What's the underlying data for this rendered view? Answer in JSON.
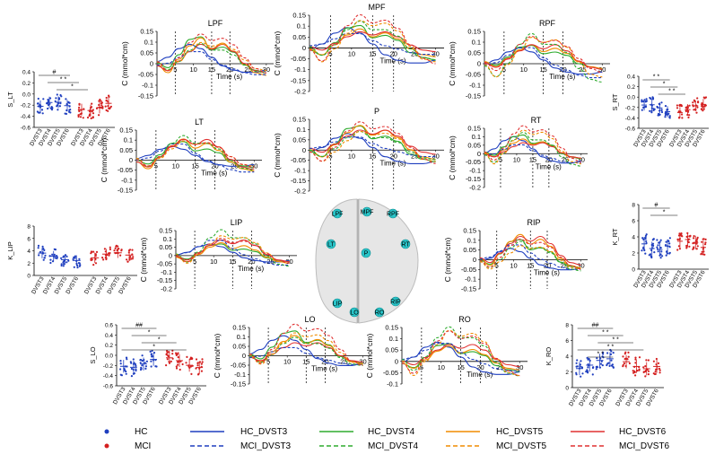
{
  "colors": {
    "hc": "#1f3fbf",
    "mci": "#d42020",
    "dvst3": "#1f3fbf",
    "dvst4": "#2eab2e",
    "dvst5": "#f08c00",
    "dvst6": "#e03030"
  },
  "chart_data": {
    "type": "line",
    "time_label": "Time (s)",
    "conc_label": "C (mmol*cm)",
    "time_ticks": [
      "5",
      "10",
      "15",
      "20",
      "25",
      "30"
    ],
    "brain_channels": [
      "LPF",
      "MPF",
      "RPF",
      "LT",
      "P",
      "RT",
      "LIP",
      "RIP",
      "LO",
      "RO"
    ],
    "line_charts": [
      {
        "title": "LPF",
        "yticks": [
          "0.15",
          "0.1",
          "0.05",
          "0",
          "-0.05",
          "-0.1",
          "-0.15"
        ]
      },
      {
        "title": "MPF",
        "yticks": [
          "0.15",
          "0.1",
          "0.05",
          "0",
          "-0.05",
          "-0.1",
          "-0.15",
          "-0.2"
        ]
      },
      {
        "title": "RPF",
        "yticks": [
          "0.15",
          "0.1",
          "0.05",
          "0",
          "-0.05",
          "-0.1",
          "-0.15"
        ]
      },
      {
        "title": "LT",
        "yticks": [
          "0.15",
          "0.1",
          "0.05",
          "0",
          "-0.05",
          "-0.1",
          "-0.15"
        ]
      },
      {
        "title": "P",
        "yticks": [
          "0.15",
          "0.1",
          "0.05",
          "0",
          "-0.05",
          "-0.1",
          "-0.15",
          "-0.2"
        ]
      },
      {
        "title": "RT",
        "yticks": [
          "0.15",
          "0.1",
          "0.05",
          "0",
          "-0.05",
          "-0.1",
          "-0.15",
          "-0.2"
        ]
      },
      {
        "title": "LIP",
        "yticks": [
          "0.15",
          "0.1",
          "0.05",
          "0",
          "-0.05",
          "-0.1",
          "-0.15",
          "-0.2"
        ]
      },
      {
        "title": "RIP",
        "yticks": [
          "0.15",
          "0.1",
          "0.05",
          "0",
          "-0.05",
          "-0.1",
          "-0.15"
        ]
      },
      {
        "title": "LO",
        "yticks": [
          "0.15",
          "0.1",
          "0.05",
          "0",
          "-0.05",
          "-0.1",
          "-0.15"
        ]
      },
      {
        "title": "RO",
        "yticks": [
          "0.15",
          "0.1",
          "0.05",
          "0",
          "-0.05",
          "-0.1"
        ]
      }
    ],
    "series": [
      {
        "name": "HC_DVST3",
        "values": [
          0,
          0.02,
          0.06,
          0.08,
          0.06,
          0.02,
          -0.02,
          -0.04,
          -0.05,
          -0.05,
          -0.04
        ]
      },
      {
        "name": "HC_DVST4",
        "values": [
          0,
          -0.02,
          0.03,
          0.09,
          0.1,
          0.05,
          0.06,
          0.04,
          -0.01,
          -0.03,
          -0.04
        ]
      },
      {
        "name": "HC_DVST5",
        "values": [
          0,
          -0.03,
          0.02,
          0.07,
          0.1,
          0.06,
          0.08,
          0.05,
          0,
          -0.03,
          -0.04
        ]
      },
      {
        "name": "HC_DVST6",
        "values": [
          0,
          -0.02,
          0.02,
          0.06,
          0.09,
          0.07,
          0.09,
          0.06,
          0.01,
          -0.02,
          -0.03
        ]
      },
      {
        "name": "MCI_DVST3",
        "values": [
          0,
          0.01,
          0.04,
          0.07,
          0.07,
          0.03,
          0,
          -0.02,
          -0.04,
          -0.05,
          -0.05
        ]
      },
      {
        "name": "MCI_DVST4",
        "values": [
          0,
          -0.04,
          0.01,
          0.08,
          0.12,
          0.08,
          0.08,
          0.05,
          -0.01,
          -0.05,
          -0.06
        ]
      },
      {
        "name": "MCI_DVST5",
        "values": [
          0,
          -0.05,
          0,
          0.06,
          0.11,
          0.09,
          0.1,
          0.07,
          0.01,
          -0.04,
          -0.05
        ]
      },
      {
        "name": "MCI_DVST6",
        "values": [
          0,
          -0.04,
          0.02,
          0.09,
          0.13,
          0.1,
          0.11,
          0.08,
          0.02,
          -0.03,
          -0.05
        ]
      }
    ],
    "scatter_panels": [
      {
        "ylabel": "S_LT",
        "yticks": [
          "0.4",
          "0.2",
          "0.0",
          "-0.2",
          "-0.4",
          "-0.6"
        ],
        "sig_marks": [
          "#",
          "* *",
          "*"
        ]
      },
      {
        "ylabel": "S_RT",
        "yticks": [
          "0.4",
          "0.2",
          "0.0",
          "-0.2",
          "-0.4",
          "-0.6"
        ],
        "sig_marks": [
          "* *",
          "*",
          "* *"
        ]
      },
      {
        "ylabel": "K_LIP",
        "yticks": [
          "8",
          "6",
          "4",
          "2",
          "0"
        ],
        "sig_marks": []
      },
      {
        "ylabel": "K_RT",
        "yticks": [
          "8",
          "6",
          "4",
          "2",
          "0"
        ],
        "sig_marks": [
          "#",
          "*"
        ]
      },
      {
        "ylabel": "S_LO",
        "yticks": [
          "0.6",
          "0.4",
          "0.2",
          "0.0",
          "-0.2",
          "-0.4",
          "-0.6"
        ],
        "sig_marks": [
          "##",
          "*",
          "*",
          "*"
        ]
      },
      {
        "ylabel": "K_RO",
        "yticks": [
          "8",
          "6",
          "4",
          "2",
          "0"
        ],
        "sig_marks": [
          "##",
          "* *",
          "* *",
          "* *",
          "* *"
        ]
      }
    ],
    "scatter_categories": [
      "DVST3",
      "DVST4",
      "DVST5",
      "DVST6",
      "DVST3",
      "DVST4",
      "DVST5",
      "DVST6"
    ]
  },
  "legend": {
    "hc": "HC",
    "mci": "MCI",
    "hc_dvst3": "HC_DVST3",
    "mci_dvst3": "MCI_DVST3",
    "hc_dvst4": "HC_DVST4",
    "mci_dvst4": "MCI_DVST4",
    "hc_dvst5": "HC_DVST5",
    "mci_dvst5": "MCI_DVST5",
    "hc_dvst6": "HC_DVST6",
    "mci_dvst6": "MCI_DVST6"
  }
}
